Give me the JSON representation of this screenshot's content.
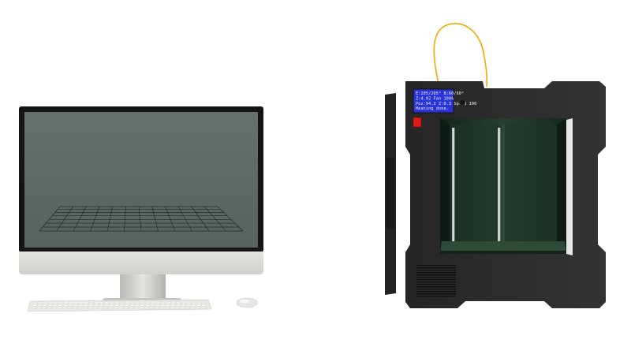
{
  "scene": {
    "colors": {
      "background": "#ffffff",
      "monitor_bezel": "#141414",
      "monitor_screen": "#5f6b68",
      "monitor_chin": "#d9dad5",
      "printer_body": "#2b2b2b",
      "printer_chamber": "#1f3a2b",
      "filament": "#f2a900",
      "lcd_background": "#2a33d6",
      "power_button": "#e01919"
    },
    "printer": {
      "lcd_lines": [
        "E:205/205° B:60/60°",
        "Z:4.92  Fan 100%",
        "Pos:94.2 Z:0.3 Speed 100",
        "Heating done."
      ]
    }
  }
}
